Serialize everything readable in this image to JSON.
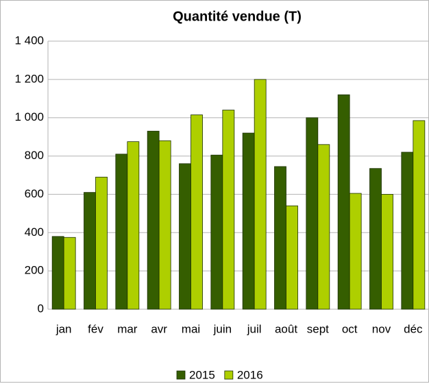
{
  "chart_data": {
    "type": "bar",
    "title": "Quantité vendue (T)",
    "categories": [
      "jan",
      "fév",
      "mar",
      "avr",
      "mai",
      "juin",
      "juil",
      "août",
      "sept",
      "oct",
      "nov",
      "déc"
    ],
    "series": [
      {
        "name": "2015",
        "color": "#355e00",
        "values": [
          380,
          610,
          810,
          930,
          760,
          805,
          920,
          745,
          1000,
          1120,
          735,
          820
        ]
      },
      {
        "name": "2016",
        "color": "#aecf00",
        "values": [
          375,
          690,
          875,
          880,
          1015,
          1040,
          1200,
          540,
          860,
          605,
          600,
          985
        ]
      }
    ],
    "ylim": [
      0,
      1400
    ],
    "yticks": [
      0,
      200,
      400,
      600,
      800,
      {
        "value": 1000,
        "label": "1 000"
      },
      {
        "value": 1200,
        "label": "1 200"
      },
      {
        "value": 1400,
        "label": "1 400"
      }
    ],
    "grid": true,
    "legend": "bottom"
  }
}
